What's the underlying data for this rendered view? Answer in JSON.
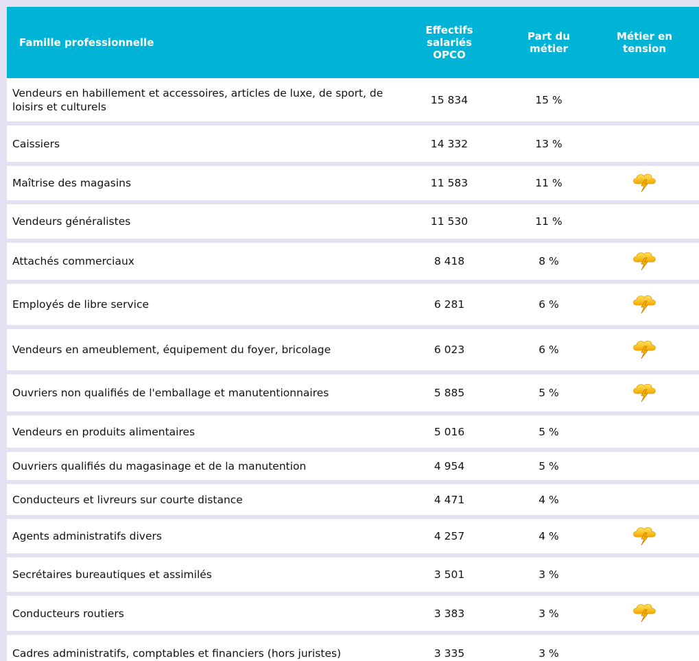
{
  "table": {
    "header": [
      "Famille professionnelle",
      "Effectifs salariés OPCO",
      "Part du métier",
      "Métier en tension"
    ],
    "rows": [
      {
        "name": "Vendeurs en habillement et accessoires, articles de luxe, de sport, de loisirs et culturels",
        "effectifs": "15 834",
        "part": "15 %",
        "tension": false
      },
      {
        "name": "Caissiers",
        "effectifs": "14 332",
        "part": "13 %",
        "tension": false
      },
      {
        "name": "Maîtrise des magasins",
        "effectifs": "11 583",
        "part": "11 %",
        "tension": true
      },
      {
        "name": "Vendeurs généralistes",
        "effectifs": "11 530",
        "part": "11 %",
        "tension": false
      },
      {
        "name": "Attachés commerciaux",
        "effectifs": "8 418",
        "part": "8 %",
        "tension": true
      },
      {
        "name": "Employés de libre service",
        "effectifs": "6 281",
        "part": "6 %",
        "tension": true
      },
      {
        "name": "Vendeurs en ameublement, équipement du foyer, bricolage",
        "effectifs": "6 023",
        "part": "6 %",
        "tension": true
      },
      {
        "name": "Ouvriers non qualifiés de l'emballage et manutentionnaires",
        "effectifs": "5 885",
        "part": "5 %",
        "tension": true
      },
      {
        "name": "Vendeurs en produits alimentaires",
        "effectifs": "5 016",
        "part": "5 %",
        "tension": false
      },
      {
        "name": "Ouvriers qualifiés du magasinage et de la manutention",
        "effectifs": "4 954",
        "part": "5 %",
        "tension": false
      },
      {
        "name": "Conducteurs et livreurs sur courte distance",
        "effectifs": "4 471",
        "part": "4 %",
        "tension": false
      },
      {
        "name": "Agents administratifs divers",
        "effectifs": "4 257",
        "part": "4 %",
        "tension": true
      },
      {
        "name": "Secrétaires bureautiques et assimilés",
        "effectifs": "3 501",
        "part": "3 %",
        "tension": false
      },
      {
        "name": "Conducteurs routiers",
        "effectifs": "3 383",
        "part": "3 %",
        "tension": true
      },
      {
        "name": "Cadres administratifs, comptables et financiers (hors juristes)",
        "effectifs": "3 335",
        "part": "3 %",
        "tension": false
      }
    ]
  }
}
